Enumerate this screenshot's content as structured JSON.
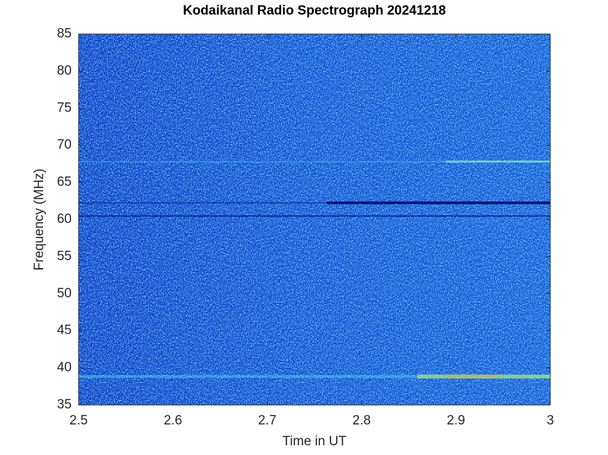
{
  "chart_data": {
    "type": "heatmap",
    "title": "Kodaikanal Radio Spectrograph  20241218",
    "x_label": "Time in UT",
    "y_label": "Frequency (MHz)",
    "xlim": [
      2.5,
      3
    ],
    "xticks": [
      2.5,
      2.6,
      2.7,
      2.8,
      2.9,
      3
    ],
    "ylim": [
      35,
      85
    ],
    "yticks": [
      35,
      40,
      45,
      50,
      55,
      60,
      65,
      70,
      75,
      80,
      85
    ],
    "colormap": "jet"
  }
}
